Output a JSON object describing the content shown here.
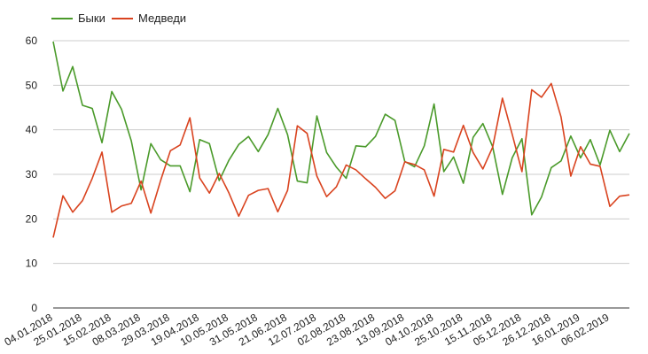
{
  "chart_data": {
    "type": "line",
    "title": "",
    "xlabel": "",
    "ylabel": "",
    "ylim": [
      0,
      60
    ],
    "y_ticks": [
      "0",
      "10",
      "20",
      "30",
      "40",
      "50",
      "60"
    ],
    "grid": true,
    "legend_position": "top-left",
    "x_tick_labels": [
      "04.01.2018",
      "25.01.2018",
      "15.02.2018",
      "08.03.2018",
      "29.03.2018",
      "19.04.2018",
      "10.05.2018",
      "31.05.2018",
      "21.06.2018",
      "12.07.2018",
      "02.08.2018",
      "23.08.2018",
      "13.09.2018",
      "04.10.2018",
      "25.10.2018",
      "15.11.2018",
      "05.12.2018",
      "26.12.2018",
      "16.01.2019",
      "06.02.2019"
    ],
    "x_tick_every": 3,
    "series": [
      {
        "name": "Быки",
        "color": "#4a9a2a",
        "values": [
          59.8,
          48.7,
          54.2,
          45.5,
          44.8,
          37.1,
          48.6,
          44.6,
          37.5,
          26.5,
          36.9,
          33.3,
          31.9,
          31.9,
          26.1,
          37.8,
          36.9,
          28.6,
          33.2,
          36.7,
          38.5,
          35.1,
          38.9,
          44.8,
          38.9,
          28.5,
          28.1,
          43.1,
          34.9,
          31.6,
          29.1,
          36.4,
          36.2,
          38.5,
          43.5,
          42.1,
          32.9,
          31.7,
          36.4,
          45.8,
          30.6,
          33.9,
          28.0,
          38.3,
          41.4,
          36.2,
          25.5,
          33.7,
          38.0,
          20.9,
          24.9,
          31.5,
          33.0,
          38.6,
          33.7,
          37.8,
          32.1,
          39.9,
          35.1,
          39.2
        ]
      },
      {
        "name": "Медведи",
        "color": "#d9431f",
        "values": [
          15.8,
          25.2,
          21.5,
          24.1,
          29.1,
          35.0,
          21.5,
          22.9,
          23.5,
          28.5,
          21.3,
          28.6,
          35.3,
          36.6,
          42.7,
          29.2,
          25.8,
          30.2,
          25.8,
          20.6,
          25.3,
          26.4,
          26.8,
          21.6,
          26.4,
          40.9,
          39.2,
          29.6,
          25.0,
          27.2,
          32.1,
          31.0,
          29.0,
          27.1,
          24.6,
          26.3,
          32.8,
          32.2,
          31.0,
          25.1,
          35.6,
          35.0,
          41.0,
          34.9,
          31.2,
          36.1,
          47.1,
          39.0,
          30.6,
          49.0,
          47.3,
          50.4,
          42.9,
          29.6,
          36.2,
          32.3,
          31.8,
          22.8,
          25.1,
          25.4
        ]
      }
    ]
  }
}
